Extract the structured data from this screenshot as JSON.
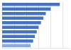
{
  "chart_data": {
    "type": "bar",
    "orientation": "horizontal",
    "categories": [
      null,
      null,
      null,
      null,
      null,
      null,
      null,
      null,
      null,
      null
    ],
    "values": [
      95,
      80,
      72,
      68,
      64,
      60,
      57,
      54,
      51,
      47
    ],
    "colors": [
      "#4472C4",
      "#4472C4",
      "#4472C4",
      "#4472C4",
      "#4472C4",
      "#4472C4",
      "#4472C4",
      "#4472C4",
      "#4472C4",
      "#8AABDB"
    ],
    "xlim": [
      0,
      110
    ],
    "xticks": [
      20,
      40,
      60,
      80,
      100
    ],
    "grid": true,
    "tick_labels": false
  }
}
